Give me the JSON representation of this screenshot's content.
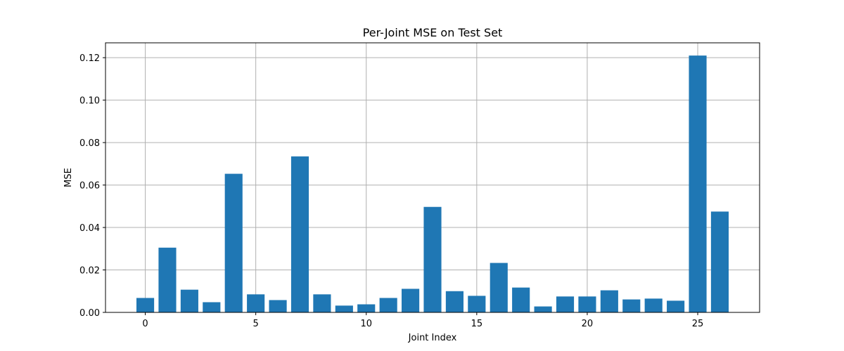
{
  "chart_data": {
    "type": "bar",
    "title": "Per-Joint MSE on Test Set",
    "xlabel": "Joint Index",
    "ylabel": "MSE",
    "categories": [
      0,
      1,
      2,
      3,
      4,
      5,
      6,
      7,
      8,
      9,
      10,
      11,
      12,
      13,
      14,
      15,
      16,
      17,
      18,
      19,
      20,
      21,
      22,
      23,
      24,
      25,
      26
    ],
    "values": [
      0.0068,
      0.0305,
      0.0107,
      0.0048,
      0.0653,
      0.0085,
      0.0058,
      0.0735,
      0.0085,
      0.0032,
      0.0038,
      0.0068,
      0.0111,
      0.0497,
      0.01,
      0.0078,
      0.0233,
      0.0117,
      0.0028,
      0.0075,
      0.0075,
      0.0104,
      0.0061,
      0.0065,
      0.0055,
      0.121,
      0.0475
    ],
    "xlim": [
      -1.8,
      27.8
    ],
    "ylim": [
      0,
      0.127
    ],
    "xticks": [
      0,
      5,
      10,
      15,
      20,
      25
    ],
    "xtick_labels": [
      "0",
      "5",
      "10",
      "15",
      "20",
      "25"
    ],
    "yticks": [
      0,
      0.02,
      0.04,
      0.06,
      0.08,
      0.1,
      0.12
    ],
    "ytick_labels": [
      "0.00",
      "0.02",
      "0.04",
      "0.06",
      "0.08",
      "0.10",
      "0.12"
    ],
    "grid": true,
    "bar_color": "#1f77b4",
    "grid_color": "#b0b0b0"
  }
}
